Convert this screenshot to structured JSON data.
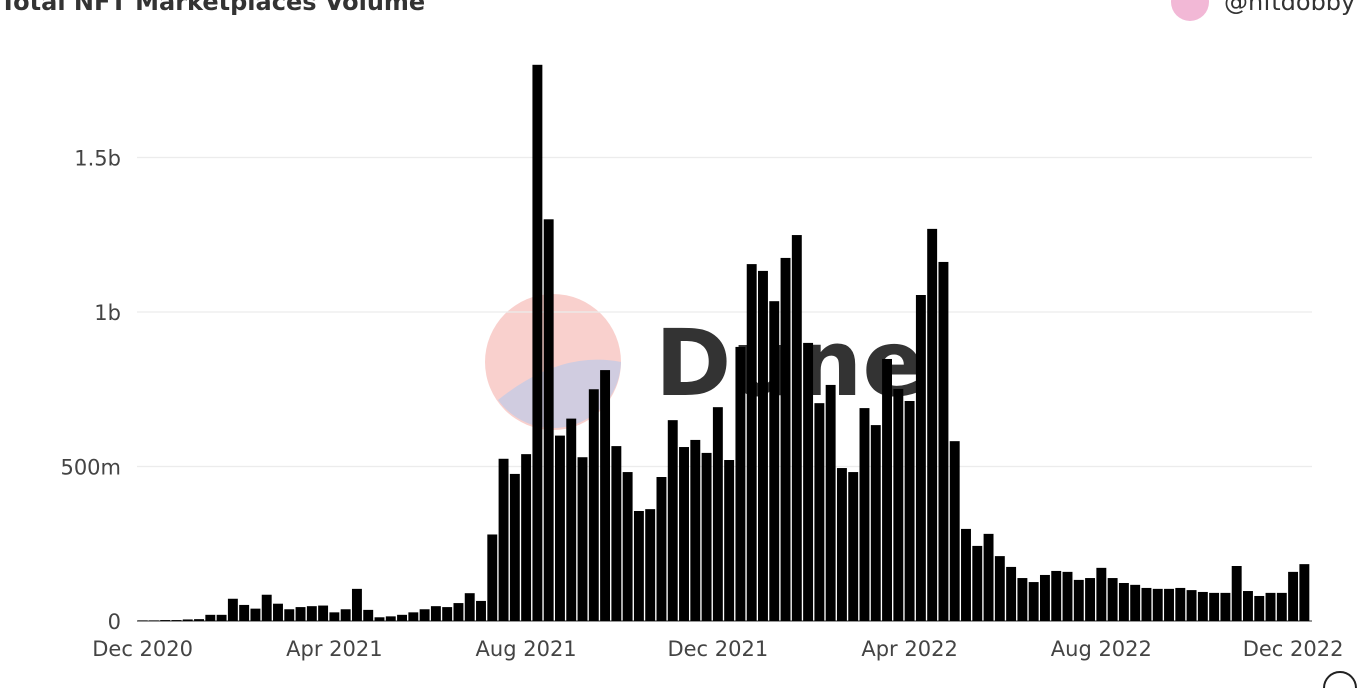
{
  "chart_data": {
    "type": "bar",
    "title": "Total NFT Marketplaces Volume",
    "author": "@nftdobby",
    "watermark": "Dune",
    "color": "#000000",
    "grid": true,
    "ylim": [
      0,
      1850
    ],
    "yticks": [
      0,
      {
        "value": 500,
        "label": "500m"
      },
      {
        "value": 1000,
        "label": "1b"
      },
      {
        "value": 1500,
        "label": "1.5b"
      }
    ],
    "categories": [
      "Dec 2020",
      null,
      null,
      null,
      null,
      null,
      null,
      null,
      null,
      null,
      null,
      null,
      null,
      null,
      null,
      null,
      null,
      "Apr 2021",
      null,
      null,
      null,
      null,
      null,
      null,
      null,
      null,
      null,
      null,
      null,
      null,
      null,
      null,
      null,
      null,
      "Aug 2021",
      null,
      null,
      null,
      null,
      null,
      null,
      null,
      null,
      null,
      null,
      null,
      null,
      null,
      null,
      null,
      null,
      "Dec 2021",
      null,
      null,
      null,
      null,
      null,
      null,
      null,
      null,
      null,
      null,
      null,
      null,
      null,
      null,
      null,
      null,
      "Apr 2022",
      null,
      null,
      null,
      null,
      null,
      null,
      null,
      null,
      null,
      null,
      null,
      null,
      null,
      null,
      null,
      null,
      "Aug 2022",
      null,
      null,
      null,
      null,
      null,
      null,
      null,
      null,
      null,
      null,
      null,
      null,
      null,
      null,
      null,
      null,
      "Dec 2022",
      null
    ],
    "values": [
      2,
      2,
      3,
      3,
      5,
      6,
      20,
      20,
      72,
      52,
      40,
      85,
      56,
      38,
      45,
      48,
      50,
      28,
      38,
      104,
      36,
      12,
      15,
      20,
      28,
      38,
      48,
      45,
      58,
      90,
      65,
      280,
      525,
      476,
      540,
      1800,
      1300,
      600,
      655,
      530,
      750,
      812,
      566,
      482,
      356,
      362,
      466,
      650,
      563,
      586,
      544,
      692,
      521,
      887,
      1155,
      1133,
      1035,
      1175,
      1249,
      900,
      705,
      764,
      495,
      482,
      689,
      634,
      848,
      751,
      712,
      1055,
      1269,
      1162,
      582,
      298,
      243,
      282,
      210,
      175,
      139,
      126,
      149,
      162,
      159,
      133,
      139,
      172,
      139,
      123,
      117,
      107,
      104,
      104,
      107,
      100,
      94,
      91,
      91,
      178,
      97,
      81,
      91,
      91,
      159,
      184
    ]
  }
}
